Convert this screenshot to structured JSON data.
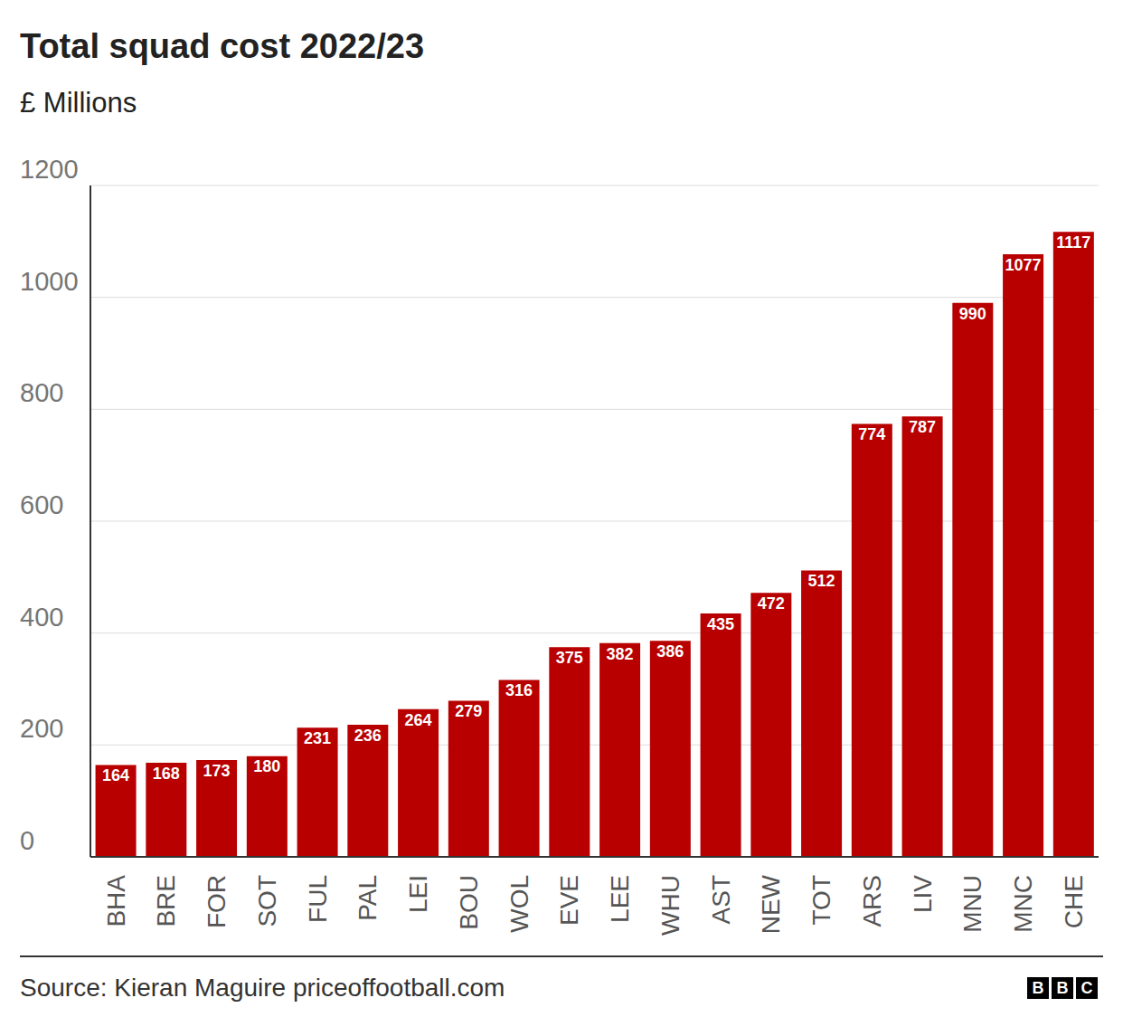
{
  "chart_data": {
    "type": "bar",
    "title": "Total squad cost 2022/23",
    "subtitle": "£ Millions",
    "categories": [
      "BHA",
      "BRE",
      "FOR",
      "SOT",
      "FUL",
      "PAL",
      "LEI",
      "BOU",
      "WOL",
      "EVE",
      "LEE",
      "WHU",
      "AST",
      "NEW",
      "TOT",
      "ARS",
      "LIV",
      "MNU",
      "MNC",
      "CHE"
    ],
    "values": [
      164,
      168,
      173,
      180,
      231,
      236,
      264,
      279,
      316,
      375,
      382,
      386,
      435,
      472,
      512,
      774,
      787,
      990,
      1077,
      1117
    ],
    "color": "#b80000",
    "ylim": [
      0,
      1200
    ],
    "yticks": [
      0,
      200,
      400,
      600,
      800,
      1000,
      1200
    ],
    "grid": true,
    "data_labels": true,
    "source": "Source: Kieran Maguire priceoffootball.com",
    "branding": "BBC"
  }
}
